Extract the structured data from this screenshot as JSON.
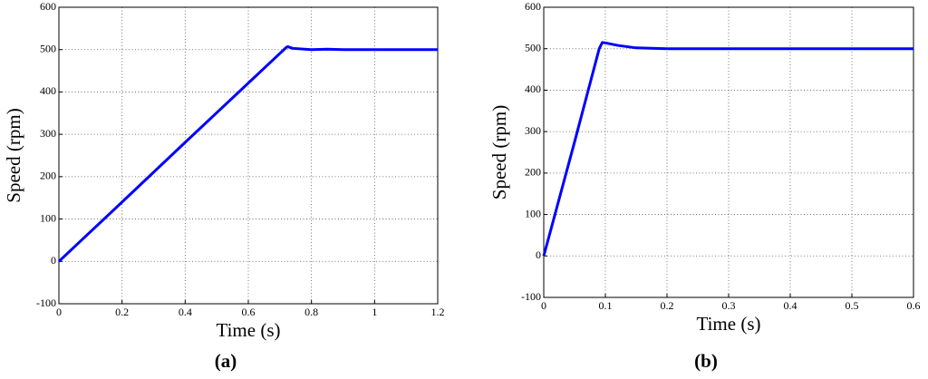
{
  "chart_data": [
    {
      "type": "line",
      "xlabel": "Time (s)",
      "ylabel": "Speed (rpm)",
      "caption": "(a)",
      "x": [
        0,
        0.2,
        0.4,
        0.6,
        0.7,
        0.72,
        0.725,
        0.74,
        0.8,
        0.85,
        0.9,
        1.2
      ],
      "series": [
        {
          "color": "#0000ff",
          "values": [
            0,
            140,
            281,
            421,
            491,
            505,
            507,
            503,
            500,
            501,
            500,
            500
          ]
        }
      ],
      "xlim": [
        0,
        1.2
      ],
      "ylim": [
        -100,
        600
      ],
      "xticks": [
        0,
        0.2,
        0.4,
        0.6,
        0.8,
        1,
        1.2
      ],
      "yticks": [
        -100,
        0,
        100,
        200,
        300,
        400,
        500,
        600
      ],
      "grid": true
    },
    {
      "type": "line",
      "xlabel": "Time (s)",
      "ylabel": "Speed (rpm)",
      "caption": "(b)",
      "x": [
        0,
        0.05,
        0.09,
        0.095,
        0.1,
        0.12,
        0.15,
        0.2,
        0.6
      ],
      "series": [
        {
          "color": "#0000ff",
          "values": [
            0,
            275,
            500,
            515,
            514,
            508,
            502,
            500,
            500
          ]
        }
      ],
      "xlim": [
        0,
        0.6
      ],
      "ylim": [
        -100,
        600
      ],
      "xticks": [
        0,
        0.1,
        0.2,
        0.3,
        0.4,
        0.5,
        0.6
      ],
      "yticks": [
        -100,
        0,
        100,
        200,
        300,
        400,
        500,
        600
      ],
      "grid": true
    }
  ]
}
